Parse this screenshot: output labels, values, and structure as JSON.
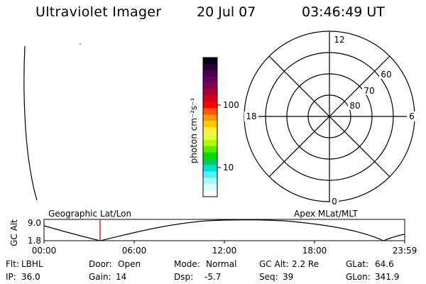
{
  "header": {
    "instrument": "Ultraviolet Imager",
    "date": "20 Jul 07",
    "time": "03:46:49 UT"
  },
  "colorbar": {
    "unit_label": "photon cm⁻²s⁻¹",
    "ticks": [
      "100",
      "10"
    ],
    "colors": [
      "#000020",
      "#2a0033",
      "#4a0050",
      "#660060",
      "#8a0048",
      "#b00030",
      "#d80018",
      "#ff0000",
      "#ff5a00",
      "#ff9a00",
      "#ffcc00",
      "#ffee40",
      "#e6ff40",
      "#aaff00",
      "#55ee00",
      "#00dd00",
      "#00cc66",
      "#00dddd",
      "#55eeee",
      "#aaf4f4",
      "#ddfafa",
      "#f4ffff"
    ]
  },
  "polar": {
    "mlt_labels": {
      "top": "12",
      "left": "18",
      "right": "6",
      "bottom": "0"
    },
    "lat_labels": [
      "60",
      "70",
      "80"
    ]
  },
  "timeline": {
    "left_label": "Geographic Lat/Lon",
    "right_label": "Apex MLat/MLT",
    "axis_label": "GC Alt",
    "y_ticks": [
      "9.0",
      "1.8"
    ],
    "x_ticks": [
      "00:00",
      "06:00",
      "12:00",
      "18:00",
      "23:59"
    ],
    "marker_color": "#dd0000"
  },
  "info": {
    "row1": [
      {
        "label": "Flt:",
        "value": "LBHL"
      },
      {
        "label": "Door:",
        "value": "Open"
      },
      {
        "label": "Mode:",
        "value": "Normal"
      },
      {
        "label": "GC Alt:",
        "value": "2.2 Re"
      },
      {
        "label": "GLat:",
        "value": "64.6"
      }
    ],
    "row2": [
      {
        "label": "IP:",
        "value": "36.0"
      },
      {
        "label": "Gain:",
        "value": "14"
      },
      {
        "label": "Dsp:",
        "value": "-5.7"
      },
      {
        "label": "Seq:",
        "value": "39"
      },
      {
        "label": "GLon:",
        "value": "341.9"
      }
    ]
  }
}
